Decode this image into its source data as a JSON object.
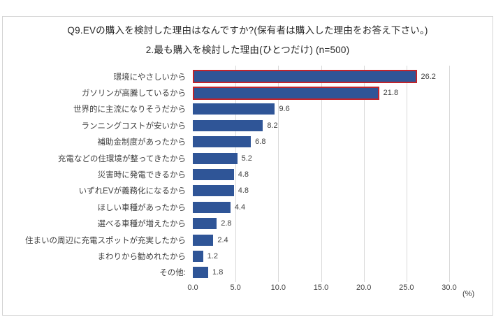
{
  "title": {
    "line1": "Q9.EVの購入を検討した理由はなんですか?(保有者は購入した理由をお答え下さい。)",
    "line2": "2.最も購入を検討した理由(ひとつだけ) (n=500)"
  },
  "chart_data": {
    "type": "bar",
    "orientation": "horizontal",
    "title": "Q9.EVの購入を検討した理由はなんですか?(保有者は購入した理由をお答え下さい。)",
    "subtitle": "2.最も購入を検討した理由(ひとつだけ)",
    "sample_size_label": "(n=500)",
    "categories": [
      "環境にやさしいから",
      "ガソリンが高騰しているから",
      "世界的に主流になりそうだから",
      "ランニングコストが安いから",
      "補助金制度があったから",
      "充電などの住環境が整ってきたから",
      "災害時に発電できるから",
      "いずれEVが義務化になるから",
      "ほしい車種があったから",
      "選べる車種が増えたから",
      "住まいの周辺に充電スポットが充実したから",
      "まわりから勧めれたから",
      "その他:"
    ],
    "values": [
      26.2,
      21.8,
      9.6,
      8.2,
      6.8,
      5.2,
      4.8,
      4.8,
      4.4,
      2.8,
      2.4,
      1.2,
      1.8
    ],
    "value_labels": [
      "26.2",
      "21.8",
      "9.6",
      "8.2",
      "6.8",
      "5.2",
      "4.8",
      "4.8",
      "4.4",
      "2.8",
      "2.4",
      "1.2",
      "1.8"
    ],
    "highlight_indices": [
      0,
      1
    ],
    "xlim": [
      0,
      30
    ],
    "xticks": [
      "0.0",
      "5.0",
      "10.0",
      "15.0",
      "20.0",
      "25.0",
      "30.0"
    ],
    "unit_label": "(%)",
    "grid": true,
    "legend": "none",
    "colors": {
      "bar_fill": "#2f5597",
      "highlight_border": "#c0242c",
      "gridline": "#d9d9d9",
      "frame_border": "#d4d4d4",
      "text": "#404040"
    }
  }
}
